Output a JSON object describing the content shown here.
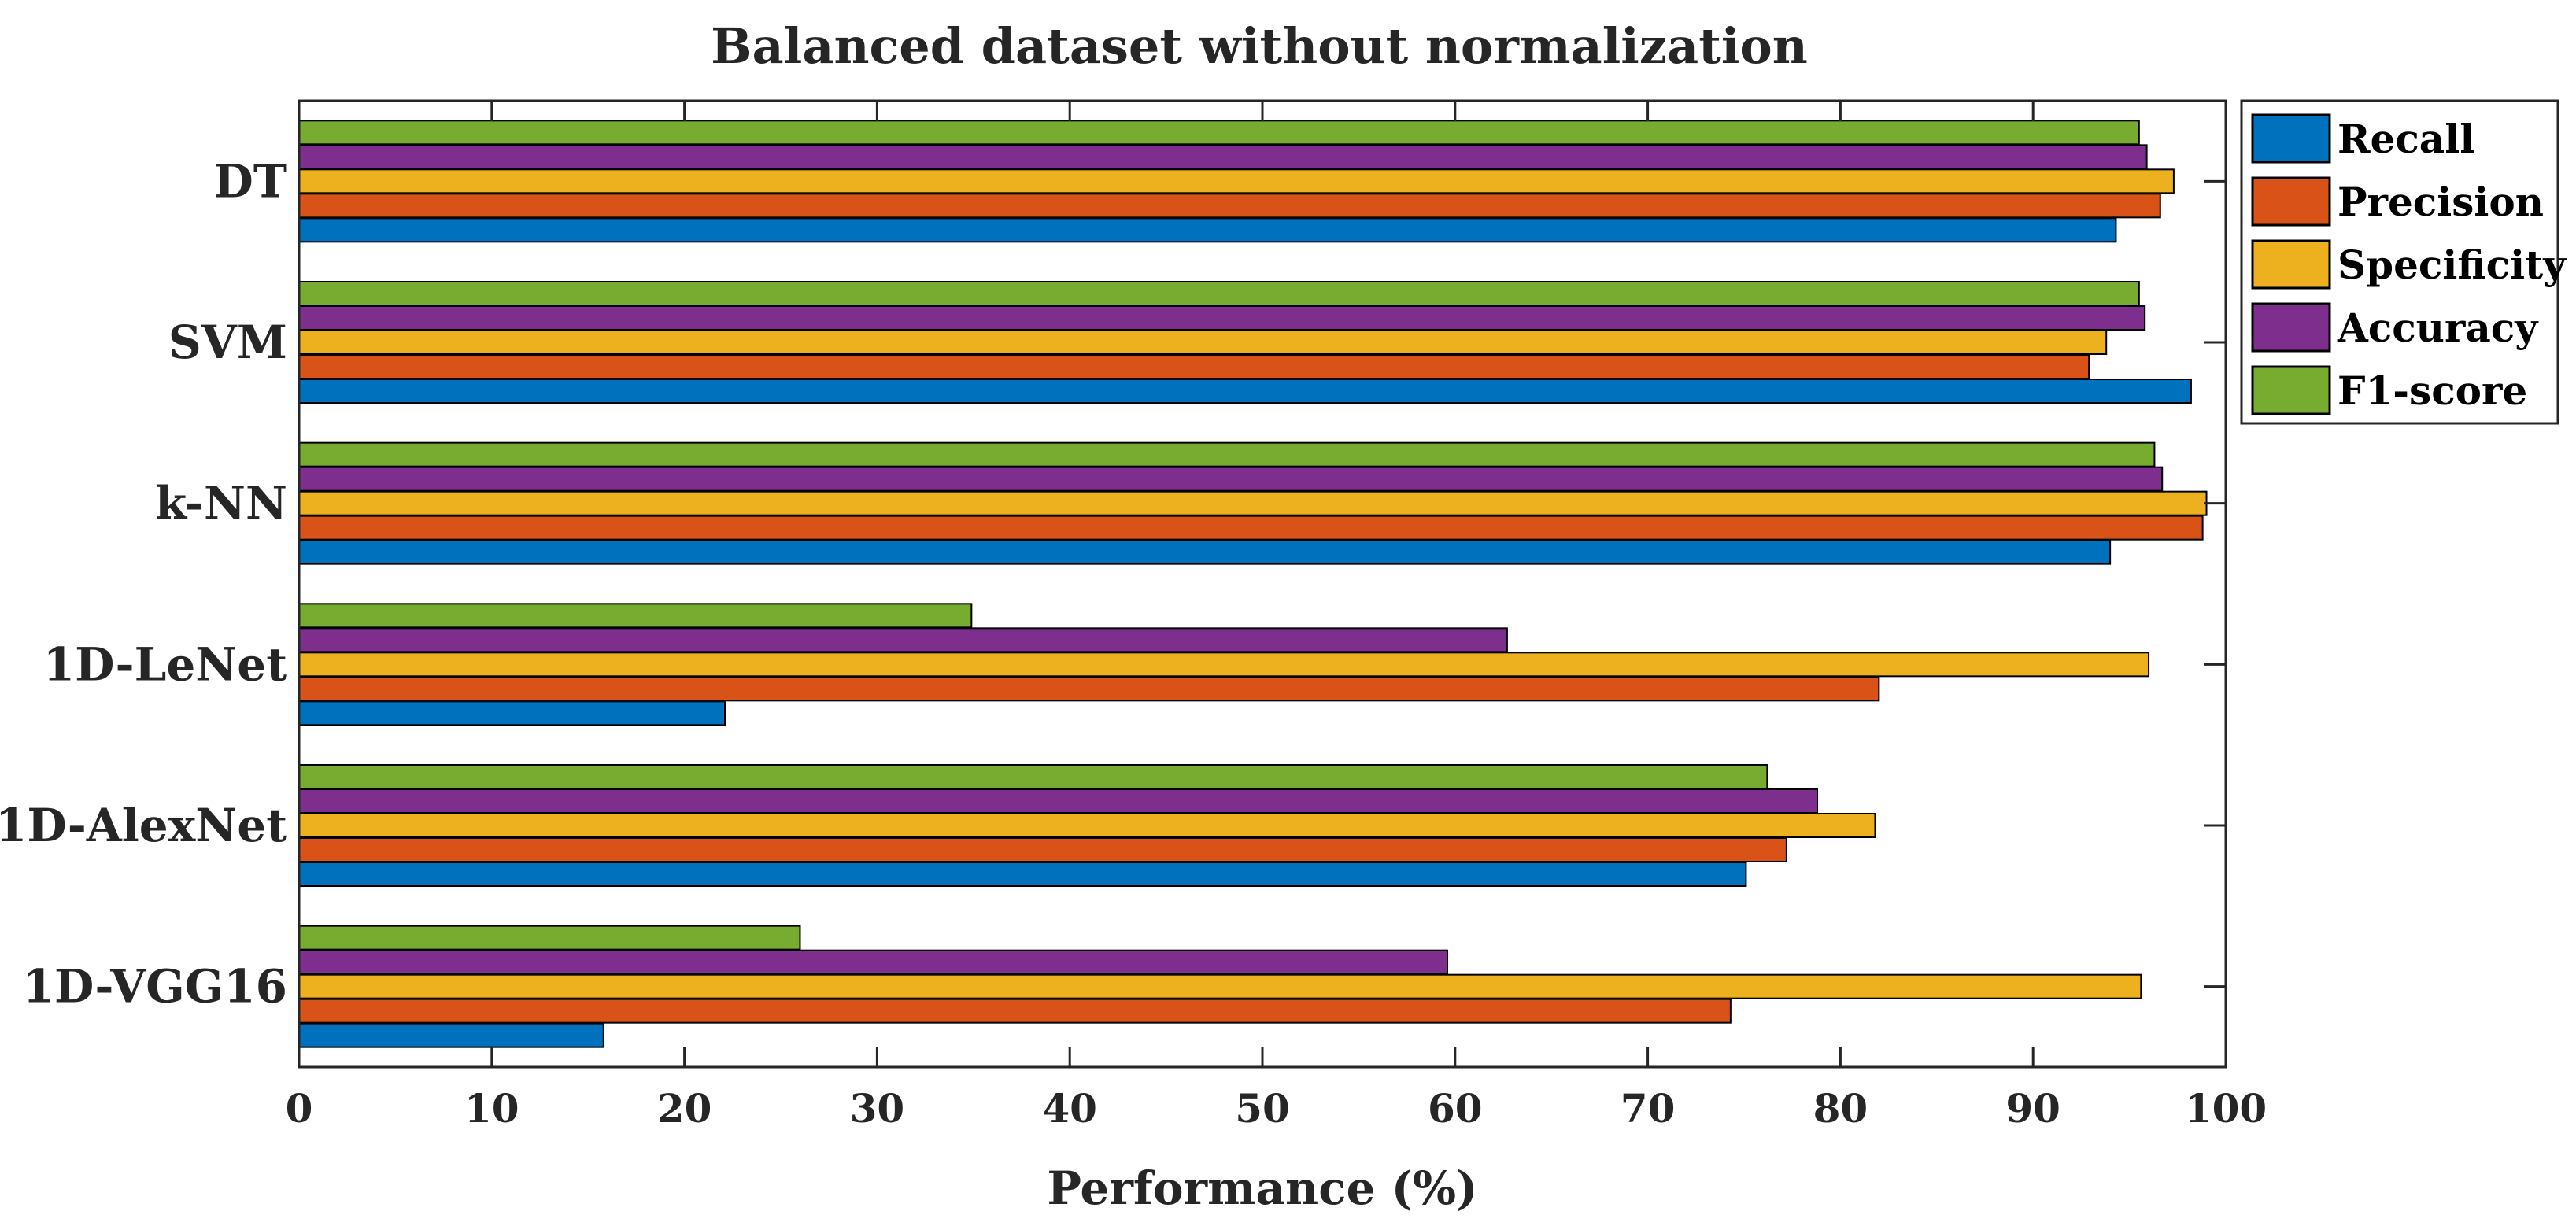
{
  "chart_data": {
    "type": "bar",
    "orientation": "horizontal",
    "title": "Balanced dataset without normalization",
    "xlabel": "Performance (%)",
    "ylabel": "",
    "xlim": [
      0,
      100
    ],
    "xticks": [
      "0",
      "10",
      "20",
      "30",
      "40",
      "50",
      "60",
      "70",
      "80",
      "90",
      "100"
    ],
    "categories": [
      "DT",
      "SVM",
      "k-NN",
      "1D-LeNet",
      "1D-AlexNet",
      "1D-VGG16"
    ],
    "series": [
      {
        "name": "Recall",
        "color": "#0072BD",
        "values": [
          94.3,
          98.2,
          94.0,
          22.1,
          75.1,
          15.8
        ]
      },
      {
        "name": "Precision",
        "color": "#D95319",
        "values": [
          96.6,
          92.9,
          98.8,
          82.0,
          77.2,
          74.3
        ]
      },
      {
        "name": "Specificity",
        "color": "#EDB120",
        "values": [
          97.3,
          93.8,
          99.0,
          96.0,
          81.8,
          95.6
        ]
      },
      {
        "name": "Accuracy",
        "color": "#7E2F8E",
        "values": [
          95.9,
          95.8,
          96.7,
          62.7,
          78.8,
          59.6
        ]
      },
      {
        "name": "F1-score",
        "color": "#77AC30",
        "values": [
          95.5,
          95.5,
          96.3,
          34.9,
          76.2,
          26.0
        ]
      }
    ],
    "legend_position": "top-right-outside",
    "grid": false
  }
}
